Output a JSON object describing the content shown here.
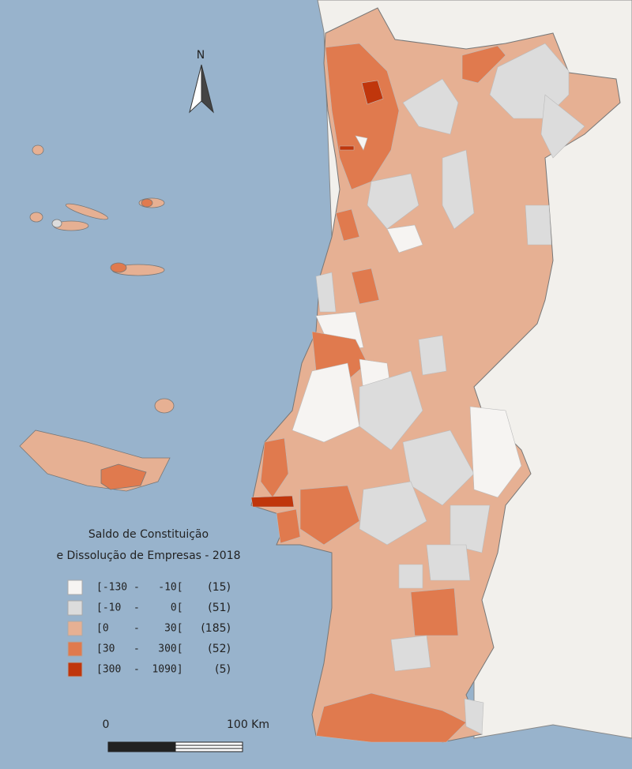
{
  "map": {
    "north_label": "N",
    "legend": {
      "title": [
        "Saldo de Constituição",
        "e Dissolução de Empresas - 2018"
      ],
      "items": [
        {
          "range": "[-130 -   -10[",
          "count": "(15)",
          "color": "#f6f4f2"
        },
        {
          "range": "[-10  -     0[",
          "count": "(51)",
          "color": "#dcdcdc"
        },
        {
          "range": "[0    -    30[",
          "count": "(185)",
          "color": "#e6b093"
        },
        {
          "range": "[30   -   300[",
          "count": "(52)",
          "color": "#e07a4e"
        },
        {
          "range": "[300  -  1090]",
          "count": "(5)",
          "color": "#c0360c"
        }
      ]
    },
    "scale_bar": {
      "start": "0",
      "end": "100 Km"
    }
  }
}
